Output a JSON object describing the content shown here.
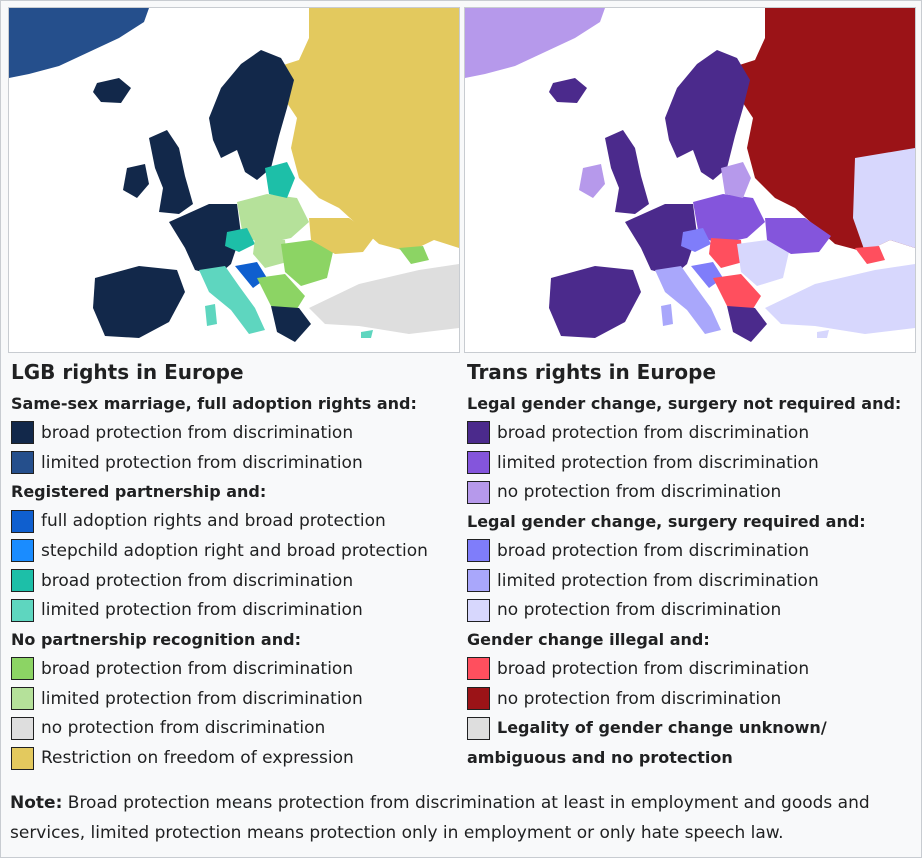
{
  "lgb": {
    "title": "LGB rights in Europe",
    "groups": [
      {
        "title": "Same-sex marriage, full adoption rights and:",
        "items": [
          {
            "label": "broad protection from discrimination",
            "color": "#12284a"
          },
          {
            "label": "limited protection from discrimination",
            "color": "#254f8c"
          }
        ]
      },
      {
        "title": "Registered partnership and:",
        "items": [
          {
            "label": "full adoption rights and broad protection",
            "color": "#0f5fcf"
          },
          {
            "label": "stepchild adoption right and broad protection",
            "color": "#1a8cff"
          },
          {
            "label": "broad protection from discrimination",
            "color": "#1dbfa8"
          },
          {
            "label": "limited protection from discrimination",
            "color": "#5ed6bf"
          }
        ]
      },
      {
        "title": "No partnership recognition and:",
        "items": [
          {
            "label": "broad protection from discrimination",
            "color": "#8cd464"
          },
          {
            "label": "limited protection from discrimination",
            "color": "#b5e19a"
          },
          {
            "label": "no protection from discrimination",
            "color": "#dedede"
          },
          {
            "label": "Restriction on freedom of expression",
            "color": "#e3c95e"
          }
        ]
      }
    ]
  },
  "trans": {
    "title": "Trans rights in Europe",
    "groups": [
      {
        "title": "Legal gender change, surgery not required and:",
        "items": [
          {
            "label": "broad protection from discrimination",
            "color": "#4b2a8c"
          },
          {
            "label": "limited protection from discrimination",
            "color": "#8455dc"
          },
          {
            "label": "no protection from discrimination",
            "color": "#b699eb"
          }
        ]
      },
      {
        "title": "Legal gender change, surgery required and:",
        "items": [
          {
            "label": "broad protection from discrimination",
            "color": "#7f7dfa"
          },
          {
            "label": "limited protection from discrimination",
            "color": "#a9a7fb"
          },
          {
            "label": "no protection from discrimination",
            "color": "#d7d7fd"
          }
        ]
      },
      {
        "title": "Gender change illegal and:",
        "items": [
          {
            "label": "broad protection from discrimination",
            "color": "#ff4f5e"
          },
          {
            "label": "no protection from discrimination",
            "color": "#9b1317"
          }
        ]
      }
    ],
    "unknown_line1": "Legality of gender change unknown/",
    "unknown_line2": "ambiguous and no protection",
    "unknown_color": "#dedede"
  },
  "note": {
    "label": "Note:",
    "text": " Broad protection means protection from discrimination at least in employment and goods and services, limited protection means protection only in employment or only hate speech law."
  }
}
